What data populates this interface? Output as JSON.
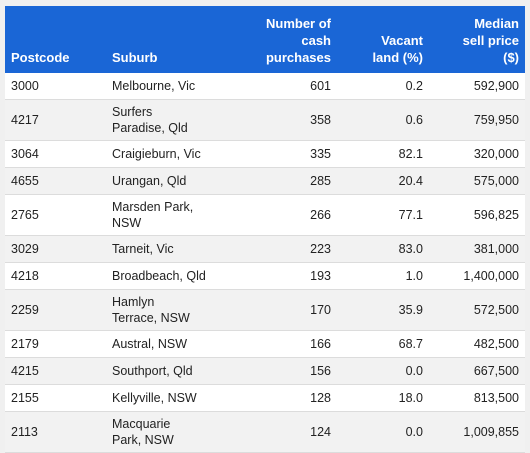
{
  "headers": {
    "postcode": "Postcode",
    "suburb": "Suburb",
    "cash_purchases": "Number of cash purchases",
    "vacant_land": "Vacant land (%)",
    "median_price": "Median sell price ($)"
  },
  "rows": [
    {
      "postcode": "3000",
      "suburb": "Melbourne, Vic",
      "cash": "601",
      "vacant": "0.2",
      "price": "592,900",
      "wrap": false
    },
    {
      "postcode": "4217",
      "suburb": "Surfers Paradise, Qld",
      "cash": "358",
      "vacant": "0.6",
      "price": "759,950",
      "wrap": true
    },
    {
      "postcode": "3064",
      "suburb": "Craigieburn, Vic",
      "cash": "335",
      "vacant": "82.1",
      "price": "320,000",
      "wrap": false
    },
    {
      "postcode": "4655",
      "suburb": "Urangan, Qld",
      "cash": "285",
      "vacant": "20.4",
      "price": "575,000",
      "wrap": false
    },
    {
      "postcode": "2765",
      "suburb": "Marsden Park, NSW",
      "cash": "266",
      "vacant": "77.1",
      "price": "596,825",
      "wrap": true
    },
    {
      "postcode": "3029",
      "suburb": "Tarneit, Vic",
      "cash": "223",
      "vacant": "83.0",
      "price": "381,000",
      "wrap": false
    },
    {
      "postcode": "4218",
      "suburb": "Broadbeach, Qld",
      "cash": "193",
      "vacant": "1.0",
      "price": "1,400,000",
      "wrap": false
    },
    {
      "postcode": "2259",
      "suburb": "Hamlyn Terrace, NSW",
      "cash": "170",
      "vacant": "35.9",
      "price": "572,500",
      "wrap": true
    },
    {
      "postcode": "2179",
      "suburb": "Austral, NSW",
      "cash": "166",
      "vacant": "68.7",
      "price": "482,500",
      "wrap": false
    },
    {
      "postcode": "4215",
      "suburb": "Southport, Qld",
      "cash": "156",
      "vacant": "0.0",
      "price": "667,500",
      "wrap": false
    },
    {
      "postcode": "2155",
      "suburb": "Kellyville, NSW",
      "cash": "128",
      "vacant": "18.0",
      "price": "813,500",
      "wrap": false
    },
    {
      "postcode": "2113",
      "suburb": "Macquarie Park, NSW",
      "cash": "124",
      "vacant": "0.0",
      "price": "1,009,855",
      "wrap": true
    }
  ]
}
